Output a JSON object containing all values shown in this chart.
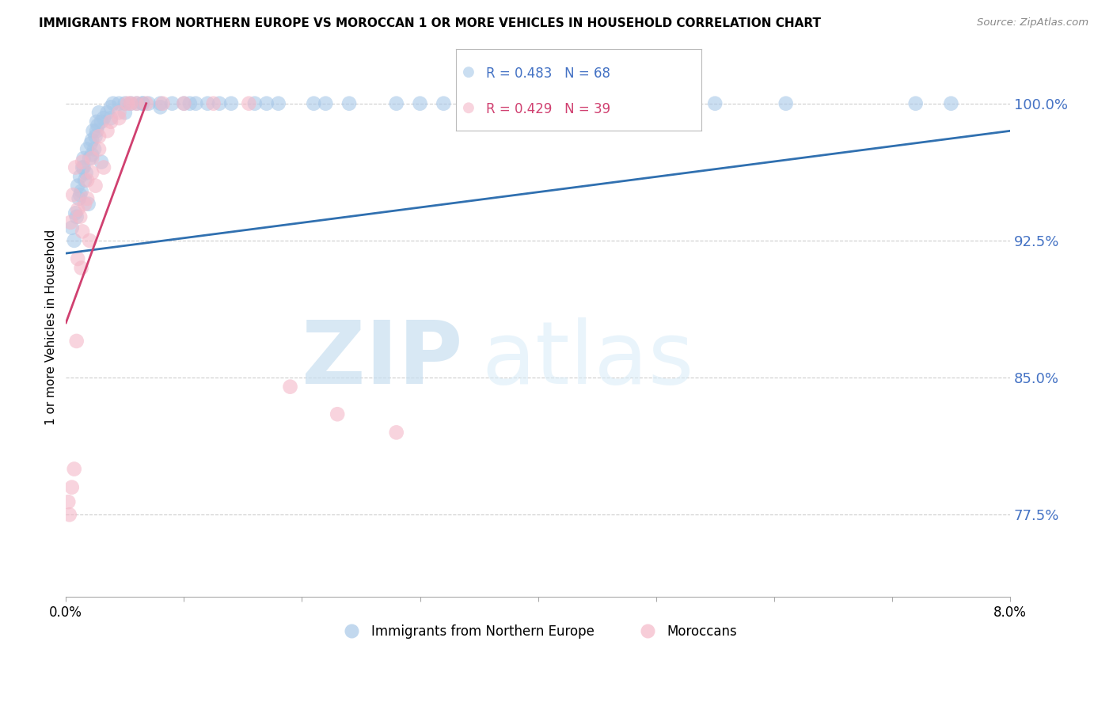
{
  "title": "IMMIGRANTS FROM NORTHERN EUROPE VS MOROCCAN 1 OR MORE VEHICLES IN HOUSEHOLD CORRELATION CHART",
  "source": "Source: ZipAtlas.com",
  "ylabel": "1 or more Vehicles in Household",
  "R_blue": 0.483,
  "N_blue": 68,
  "R_pink": 0.429,
  "N_pink": 39,
  "blue_color": "#a8c8e8",
  "pink_color": "#f4b8c8",
  "trend_blue": "#3070b0",
  "trend_pink": "#d04070",
  "xmin": 0.0,
  "xmax": 8.0,
  "ymin": 73.0,
  "ymax": 102.5,
  "yticks": [
    77.5,
    85.0,
    92.5,
    100.0
  ],
  "xtick_positions": [
    0.0,
    1.0,
    2.0,
    3.0,
    4.0,
    5.0,
    6.0,
    7.0,
    8.0
  ],
  "xtick_labels": [
    "0.0%",
    "",
    "",
    "",
    "",
    "",
    "",
    "",
    "8.0%"
  ],
  "legend_blue_label": "Immigrants from Northern Europe",
  "legend_pink_label": "Moroccans",
  "blue_x": [
    0.05,
    0.08,
    0.1,
    0.11,
    0.12,
    0.13,
    0.14,
    0.15,
    0.16,
    0.17,
    0.18,
    0.2,
    0.21,
    0.22,
    0.23,
    0.24,
    0.25,
    0.26,
    0.27,
    0.28,
    0.3,
    0.32,
    0.35,
    0.38,
    0.4,
    0.45,
    0.5,
    0.55,
    0.6,
    0.65,
    0.7,
    0.8,
    0.9,
    1.05,
    1.1,
    1.2,
    1.4,
    1.6,
    1.8,
    2.1,
    2.4,
    2.8,
    3.2,
    3.8,
    4.5,
    5.2,
    6.1,
    7.2,
    0.07,
    0.09,
    0.12,
    0.15,
    0.19,
    0.22,
    0.26,
    0.3,
    0.38,
    0.5,
    0.65,
    0.8,
    1.0,
    1.3,
    1.7,
    2.2,
    3.0,
    4.0,
    5.5,
    7.5
  ],
  "blue_y": [
    93.2,
    94.0,
    95.5,
    94.8,
    96.0,
    95.2,
    96.5,
    97.0,
    95.8,
    96.2,
    97.5,
    97.0,
    97.8,
    98.0,
    98.5,
    97.5,
    98.2,
    99.0,
    98.8,
    99.5,
    99.0,
    99.2,
    99.5,
    99.8,
    100.0,
    100.0,
    100.0,
    100.0,
    100.0,
    100.0,
    100.0,
    100.0,
    100.0,
    100.0,
    100.0,
    100.0,
    100.0,
    100.0,
    100.0,
    100.0,
    100.0,
    100.0,
    100.0,
    100.0,
    100.0,
    100.0,
    100.0,
    100.0,
    92.5,
    93.8,
    95.0,
    96.5,
    94.5,
    97.2,
    98.5,
    96.8,
    99.2,
    99.5,
    100.0,
    99.8,
    100.0,
    100.0,
    100.0,
    100.0,
    100.0,
    100.0,
    100.0,
    100.0
  ],
  "pink_x": [
    0.02,
    0.04,
    0.06,
    0.08,
    0.1,
    0.12,
    0.14,
    0.16,
    0.18,
    0.2,
    0.22,
    0.25,
    0.28,
    0.32,
    0.38,
    0.45,
    0.52,
    0.6,
    0.03,
    0.07,
    0.1,
    0.14,
    0.18,
    0.22,
    0.28,
    0.35,
    0.45,
    0.55,
    0.68,
    0.82,
    1.0,
    1.25,
    1.55,
    1.9,
    2.3,
    2.8,
    0.05,
    0.09,
    0.13
  ],
  "pink_y": [
    78.2,
    93.5,
    95.0,
    96.5,
    94.2,
    93.8,
    96.8,
    94.5,
    95.8,
    92.5,
    97.0,
    95.5,
    98.2,
    96.5,
    99.0,
    99.5,
    100.0,
    100.0,
    77.5,
    80.0,
    91.5,
    93.0,
    94.8,
    96.2,
    97.5,
    98.5,
    99.2,
    100.0,
    100.0,
    100.0,
    100.0,
    100.0,
    100.0,
    84.5,
    83.0,
    82.0,
    79.0,
    87.0,
    91.0
  ]
}
